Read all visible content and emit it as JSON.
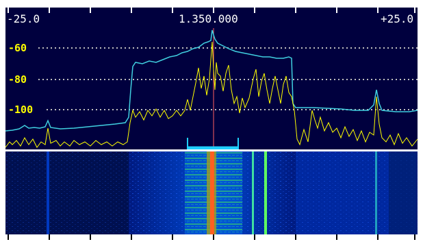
{
  "frequency_scale": {
    "left_label": "-25.0",
    "center_label": "1.350.000",
    "right_label": "+25.0"
  },
  "level_scale": {
    "labels": [
      "-60",
      "-80",
      "-100"
    ]
  },
  "colors": {
    "background": "#00003e",
    "peak_trace": "#40d0e0",
    "live_trace": "#ffff00",
    "grid": "#ffffff",
    "passband_marker": "#20d0ff",
    "tuning_line": "#ff6060"
  },
  "icons": {
    "passband_bracket": "passband-bracket-icon"
  }
}
